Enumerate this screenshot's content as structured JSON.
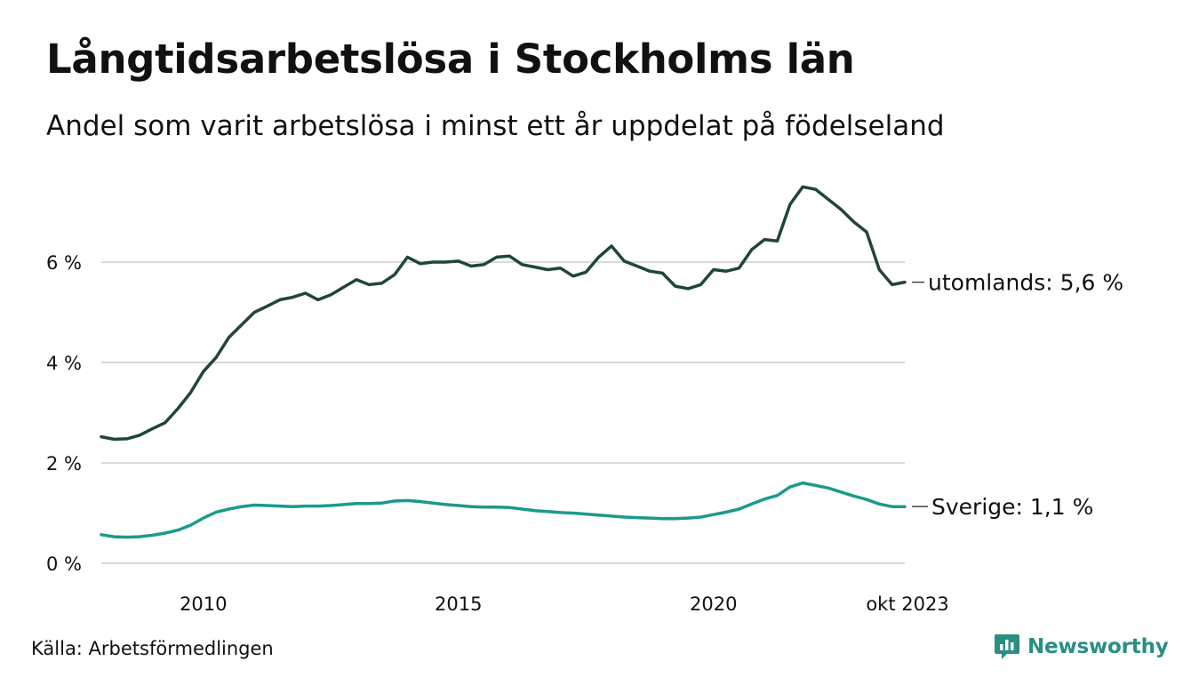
{
  "header": {
    "title": "Långtidsarbetslösa i Stockholms län",
    "subtitle": "Andel som varit arbetslösa i minst ett år uppdelat på födelseland"
  },
  "footer": {
    "source": "Källa: Arbetsförmedlingen",
    "brand": "Newsworthy",
    "brand_icon": "newsworthy-logo-icon"
  },
  "colors": {
    "utomlands": "#1f453e",
    "sverige": "#1b9a8a",
    "grid": "#d9d9d9",
    "brand": "#2a8f83"
  },
  "chart_data": {
    "type": "line",
    "title": "Långtidsarbetslösa i Stockholms län",
    "subtitle": "Andel som varit arbetslösa i minst ett år uppdelat på födelseland",
    "xlabel": "",
    "ylabel": "",
    "x_start": "2008-01",
    "x_end": "2023-10",
    "xlim": [
      2008.0,
      2023.75
    ],
    "ylim": [
      0,
      7.5
    ],
    "x_ticks": [
      {
        "value": 2010,
        "label": "2010"
      },
      {
        "value": 2015,
        "label": "2015"
      },
      {
        "value": 2020,
        "label": "2020"
      },
      {
        "value": 2023.75,
        "label": "okt 2023"
      }
    ],
    "y_ticks": [
      {
        "value": 0,
        "label": "0 %"
      },
      {
        "value": 2,
        "label": "2 %"
      },
      {
        "value": 4,
        "label": "4 %"
      },
      {
        "value": 6,
        "label": "6 %"
      }
    ],
    "grid": true,
    "legend": "end-of-line labels",
    "series": [
      {
        "name": "utomlands",
        "end_label": "utomlands: 5,6 %",
        "points": [
          [
            2008.0,
            2.52
          ],
          [
            2008.25,
            2.47
          ],
          [
            2008.5,
            2.48
          ],
          [
            2008.75,
            2.55
          ],
          [
            2009.0,
            2.68
          ],
          [
            2009.25,
            2.8
          ],
          [
            2009.5,
            3.08
          ],
          [
            2009.75,
            3.4
          ],
          [
            2010.0,
            3.82
          ],
          [
            2010.25,
            4.1
          ],
          [
            2010.5,
            4.5
          ],
          [
            2010.75,
            4.75
          ],
          [
            2011.0,
            5.0
          ],
          [
            2011.25,
            5.12
          ],
          [
            2011.5,
            5.25
          ],
          [
            2011.75,
            5.3
          ],
          [
            2012.0,
            5.38
          ],
          [
            2012.25,
            5.25
          ],
          [
            2012.5,
            5.35
          ],
          [
            2012.75,
            5.5
          ],
          [
            2013.0,
            5.65
          ],
          [
            2013.25,
            5.55
          ],
          [
            2013.5,
            5.58
          ],
          [
            2013.75,
            5.75
          ],
          [
            2014.0,
            6.1
          ],
          [
            2014.25,
            5.97
          ],
          [
            2014.5,
            6.0
          ],
          [
            2014.75,
            6.0
          ],
          [
            2015.0,
            6.02
          ],
          [
            2015.25,
            5.92
          ],
          [
            2015.5,
            5.95
          ],
          [
            2015.75,
            6.1
          ],
          [
            2016.0,
            6.12
          ],
          [
            2016.25,
            5.95
          ],
          [
            2016.5,
            5.9
          ],
          [
            2016.75,
            5.85
          ],
          [
            2017.0,
            5.88
          ],
          [
            2017.25,
            5.72
          ],
          [
            2017.5,
            5.8
          ],
          [
            2017.75,
            6.1
          ],
          [
            2018.0,
            6.32
          ],
          [
            2018.25,
            6.02
          ],
          [
            2018.5,
            5.92
          ],
          [
            2018.75,
            5.82
          ],
          [
            2019.0,
            5.78
          ],
          [
            2019.25,
            5.52
          ],
          [
            2019.5,
            5.47
          ],
          [
            2019.75,
            5.55
          ],
          [
            2020.0,
            5.85
          ],
          [
            2020.25,
            5.82
          ],
          [
            2020.5,
            5.88
          ],
          [
            2020.75,
            6.25
          ],
          [
            2021.0,
            6.45
          ],
          [
            2021.25,
            6.42
          ],
          [
            2021.5,
            7.15
          ],
          [
            2021.75,
            7.5
          ],
          [
            2022.0,
            7.45
          ],
          [
            2022.25,
            7.25
          ],
          [
            2022.5,
            7.05
          ],
          [
            2022.75,
            6.8
          ],
          [
            2023.0,
            6.6
          ],
          [
            2023.25,
            5.85
          ],
          [
            2023.5,
            5.55
          ],
          [
            2023.75,
            5.6
          ]
        ]
      },
      {
        "name": "Sverige",
        "end_label": "Sverige: 1,1 %",
        "points": [
          [
            2008.0,
            0.57
          ],
          [
            2008.25,
            0.53
          ],
          [
            2008.5,
            0.52
          ],
          [
            2008.75,
            0.53
          ],
          [
            2009.0,
            0.56
          ],
          [
            2009.25,
            0.6
          ],
          [
            2009.5,
            0.66
          ],
          [
            2009.75,
            0.76
          ],
          [
            2010.0,
            0.9
          ],
          [
            2010.25,
            1.02
          ],
          [
            2010.5,
            1.08
          ],
          [
            2010.75,
            1.13
          ],
          [
            2011.0,
            1.16
          ],
          [
            2011.25,
            1.15
          ],
          [
            2011.5,
            1.14
          ],
          [
            2011.75,
            1.13
          ],
          [
            2012.0,
            1.14
          ],
          [
            2012.25,
            1.14
          ],
          [
            2012.5,
            1.15
          ],
          [
            2012.75,
            1.17
          ],
          [
            2013.0,
            1.19
          ],
          [
            2013.25,
            1.19
          ],
          [
            2013.5,
            1.2
          ],
          [
            2013.75,
            1.24
          ],
          [
            2014.0,
            1.25
          ],
          [
            2014.25,
            1.23
          ],
          [
            2014.5,
            1.2
          ],
          [
            2014.75,
            1.17
          ],
          [
            2015.0,
            1.15
          ],
          [
            2015.25,
            1.13
          ],
          [
            2015.5,
            1.12
          ],
          [
            2015.75,
            1.12
          ],
          [
            2016.0,
            1.11
          ],
          [
            2016.25,
            1.08
          ],
          [
            2016.5,
            1.05
          ],
          [
            2016.75,
            1.03
          ],
          [
            2017.0,
            1.01
          ],
          [
            2017.25,
            1.0
          ],
          [
            2017.5,
            0.98
          ],
          [
            2017.75,
            0.96
          ],
          [
            2018.0,
            0.94
          ],
          [
            2018.25,
            0.92
          ],
          [
            2018.5,
            0.91
          ],
          [
            2018.75,
            0.9
          ],
          [
            2019.0,
            0.89
          ],
          [
            2019.25,
            0.89
          ],
          [
            2019.5,
            0.9
          ],
          [
            2019.75,
            0.92
          ],
          [
            2020.0,
            0.97
          ],
          [
            2020.25,
            1.02
          ],
          [
            2020.5,
            1.08
          ],
          [
            2020.75,
            1.18
          ],
          [
            2021.0,
            1.28
          ],
          [
            2021.25,
            1.35
          ],
          [
            2021.5,
            1.52
          ],
          [
            2021.75,
            1.6
          ],
          [
            2022.0,
            1.55
          ],
          [
            2022.25,
            1.5
          ],
          [
            2022.5,
            1.42
          ],
          [
            2022.75,
            1.34
          ],
          [
            2023.0,
            1.27
          ],
          [
            2023.25,
            1.18
          ],
          [
            2023.5,
            1.13
          ],
          [
            2023.75,
            1.13
          ]
        ]
      }
    ]
  }
}
